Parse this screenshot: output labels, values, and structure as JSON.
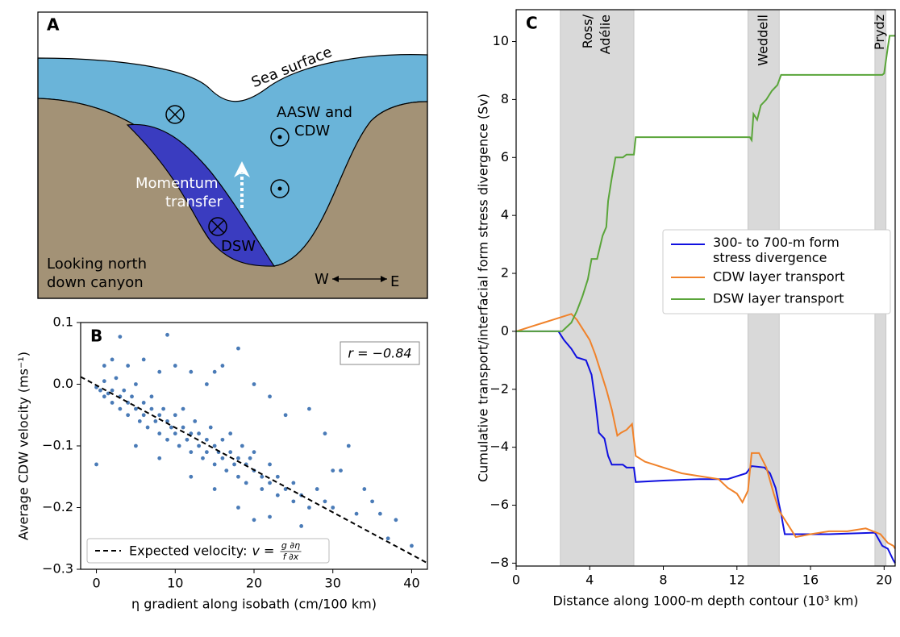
{
  "diagram": {
    "panel_label": "A",
    "sea_surface": "Sea surface",
    "water_mass": [
      "AASW and",
      "CDW"
    ],
    "momentum": [
      "Momentum",
      "transfer"
    ],
    "dsw": "DSW",
    "view": [
      "Looking north",
      "down canyon"
    ],
    "west": "W",
    "east": "E"
  },
  "chart_data": [
    {
      "type": "scatter",
      "panel_label": "B",
      "x_label": "η gradient along isobath (cm/100 km)",
      "y_label": "Average CDW velocity (ms⁻¹)",
      "annotation": "r = −0.84",
      "xlim": [
        -2,
        42
      ],
      "ylim": [
        -0.3,
        0.1
      ],
      "xticks": [
        0,
        10,
        20,
        30,
        40
      ],
      "yticks": [
        {
          "value": -0.3,
          "label": "−0.3"
        },
        {
          "value": -0.2,
          "label": "−0.2"
        },
        {
          "value": -0.1,
          "label": "−0.1"
        },
        {
          "value": 0,
          "label": "0.0"
        },
        {
          "value": 0.1,
          "label": "0.1"
        }
      ],
      "color": "#4a7bb7",
      "x": [
        0,
        0.5,
        1,
        1,
        1.5,
        2,
        2,
        2.5,
        3,
        3,
        3.5,
        4,
        4,
        4.5,
        5,
        5,
        5.5,
        6,
        6,
        6.5,
        7,
        7,
        7.5,
        8,
        8,
        8.5,
        9,
        9,
        9.5,
        10,
        10,
        10.5,
        11,
        11,
        11.5,
        12,
        12,
        12.5,
        13,
        13,
        13.5,
        14,
        14,
        14.5,
        15,
        15,
        15.5,
        16,
        16,
        16.5,
        17,
        17,
        17.5,
        18,
        18,
        18.5,
        19,
        19,
        19.5,
        20,
        20,
        21,
        21,
        22,
        22,
        23,
        23,
        24,
        25,
        25,
        26,
        27,
        28,
        29,
        30,
        1,
        2,
        3,
        4,
        6,
        8,
        9,
        10,
        12,
        14,
        15,
        16,
        18,
        20,
        22,
        24,
        27,
        29,
        31,
        32,
        34,
        35,
        33,
        37,
        40,
        0,
        5,
        8,
        12,
        15,
        18,
        20,
        22,
        26,
        30,
        36,
        38
      ],
      "values": [
        -0.005,
        -0.01,
        0.005,
        -0.02,
        -0.015,
        -0.01,
        -0.03,
        0.01,
        -0.02,
        -0.04,
        -0.01,
        -0.03,
        -0.05,
        -0.02,
        -0.04,
        0.0,
        -0.06,
        -0.03,
        -0.05,
        -0.07,
        -0.04,
        -0.02,
        -0.06,
        -0.05,
        -0.08,
        -0.04,
        -0.06,
        -0.09,
        -0.07,
        -0.05,
        -0.08,
        -0.1,
        -0.07,
        -0.04,
        -0.09,
        -0.08,
        -0.11,
        -0.06,
        -0.1,
        -0.08,
        -0.12,
        -0.09,
        -0.11,
        -0.07,
        -0.1,
        -0.13,
        -0.11,
        -0.09,
        -0.12,
        -0.14,
        -0.11,
        -0.08,
        -0.13,
        -0.12,
        -0.15,
        -0.1,
        -0.13,
        -0.16,
        -0.12,
        -0.14,
        -0.11,
        -0.15,
        -0.17,
        -0.13,
        -0.16,
        -0.15,
        -0.18,
        -0.17,
        -0.16,
        -0.19,
        -0.18,
        -0.2,
        -0.17,
        -0.19,
        -0.2,
        0.03,
        0.04,
        0.077,
        0.03,
        0.04,
        0.02,
        0.08,
        0.03,
        0.02,
        0.0,
        0.02,
        0.03,
        0.058,
        0.0,
        -0.02,
        -0.05,
        -0.04,
        -0.08,
        -0.14,
        -0.1,
        -0.17,
        -0.19,
        -0.21,
        -0.25,
        -0.262,
        -0.13,
        -0.1,
        -0.12,
        -0.15,
        -0.17,
        -0.2,
        -0.22,
        -0.215,
        -0.23,
        -0.14,
        -0.21,
        -0.22
      ],
      "fit": {
        "name": "Expected velocity:",
        "formula": {
          "lhs": "v =",
          "num": "g ∂η",
          "den": "f ∂x"
        },
        "color": "#000000",
        "dashed": true,
        "x": [
          -2,
          42
        ],
        "y": [
          0.012,
          -0.29
        ]
      }
    },
    {
      "type": "line",
      "panel_label": "C",
      "x_label": "Distance along 1000-m depth contour (10³ km)",
      "y_label": "Cumulative transport/interfacial form stress divergence (Sv)",
      "xlim": [
        0,
        20.6
      ],
      "ylim": [
        -8.1,
        11.1
      ],
      "xticks": [
        0,
        4,
        8,
        12,
        16,
        20
      ],
      "yticks": [
        {
          "value": -8,
          "label": "−8"
        },
        {
          "value": -6,
          "label": "−6"
        },
        {
          "value": -4,
          "label": "−4"
        },
        {
          "value": -2,
          "label": "−2"
        },
        0,
        2,
        4,
        6,
        8,
        10
      ],
      "legend": "center right",
      "regions": [
        {
          "lines": [
            "Ross/",
            "Adélie"
          ],
          "range": [
            2.4,
            6.4
          ]
        },
        {
          "lines": [
            "Weddell"
          ],
          "range": [
            12.6,
            14.3
          ]
        },
        {
          "lines": [
            "Prydz"
          ],
          "range": [
            19.5,
            20.1
          ]
        }
      ],
      "series": [
        {
          "name": "300- to 700-m form stress divergence",
          "color": "#1010e0",
          "x": [
            0,
            2.3,
            2.6,
            3.0,
            3.3,
            3.8,
            4.1,
            4.3,
            4.5,
            4.8,
            5.0,
            5.2,
            5.4,
            5.8,
            6.0,
            6.4,
            6.5,
            8,
            10,
            11.5,
            12,
            12.5,
            12.8,
            13.5,
            13.8,
            14.1,
            14.4,
            14.6,
            17,
            19.5,
            19.9,
            20.2,
            20.5,
            20.6
          ],
          "values": [
            0,
            0,
            -0.3,
            -0.6,
            -0.9,
            -1.0,
            -1.5,
            -2.4,
            -3.5,
            -3.7,
            -4.3,
            -4.6,
            -4.6,
            -4.6,
            -4.7,
            -4.7,
            -5.2,
            -5.15,
            -5.1,
            -5.1,
            -5.0,
            -4.9,
            -4.65,
            -4.7,
            -4.9,
            -5.4,
            -6.3,
            -7.0,
            -7.0,
            -6.95,
            -7.4,
            -7.5,
            -7.9,
            -8.0
          ]
        },
        {
          "name": "CDW layer transport",
          "color": "#f0822a",
          "x": [
            0,
            0.5,
            1,
            1.5,
            2,
            2.5,
            3,
            3.3,
            3.6,
            4,
            4.3,
            4.6,
            4.9,
            5.2,
            5.5,
            5.7,
            6,
            6.3,
            6.5,
            7,
            8,
            9,
            10,
            11,
            11.5,
            12,
            12.3,
            12.6,
            12.8,
            13.2,
            13.6,
            14,
            14.3,
            14.7,
            15.2,
            16,
            17,
            18,
            19,
            19.8,
            20.2,
            20.5,
            20.6
          ],
          "values": [
            0,
            0.1,
            0.2,
            0.3,
            0.4,
            0.5,
            0.6,
            0.4,
            0.1,
            -0.3,
            -0.8,
            -1.4,
            -2.0,
            -2.7,
            -3.6,
            -3.5,
            -3.4,
            -3.2,
            -4.3,
            -4.5,
            -4.7,
            -4.9,
            -5.0,
            -5.1,
            -5.4,
            -5.6,
            -5.9,
            -5.5,
            -4.2,
            -4.2,
            -4.7,
            -5.6,
            -6.2,
            -6.6,
            -7.1,
            -7.0,
            -6.9,
            -6.9,
            -6.8,
            -7.0,
            -7.3,
            -7.4,
            -7.5
          ]
        },
        {
          "name": "DSW layer transport",
          "color": "#5aa53a",
          "x": [
            0,
            2.5,
            3,
            3.3,
            3.6,
            3.9,
            4.1,
            4.4,
            4.7,
            4.9,
            5.0,
            5.2,
            5.4,
            5.8,
            6.0,
            6.4,
            6.5,
            12.7,
            12.8,
            12.9,
            13.1,
            13.3,
            13.6,
            13.9,
            14.2,
            14.4,
            19.9,
            20.0,
            20.2,
            20.3,
            20.6
          ],
          "values": [
            0,
            0,
            0.3,
            0.7,
            1.2,
            1.8,
            2.5,
            2.5,
            3.3,
            3.6,
            4.5,
            5.3,
            6.0,
            6.0,
            6.1,
            6.1,
            6.7,
            6.7,
            6.6,
            7.5,
            7.3,
            7.8,
            8.0,
            8.3,
            8.5,
            8.85,
            8.85,
            8.9,
            9.8,
            10.2,
            10.2
          ]
        }
      ]
    }
  ]
}
